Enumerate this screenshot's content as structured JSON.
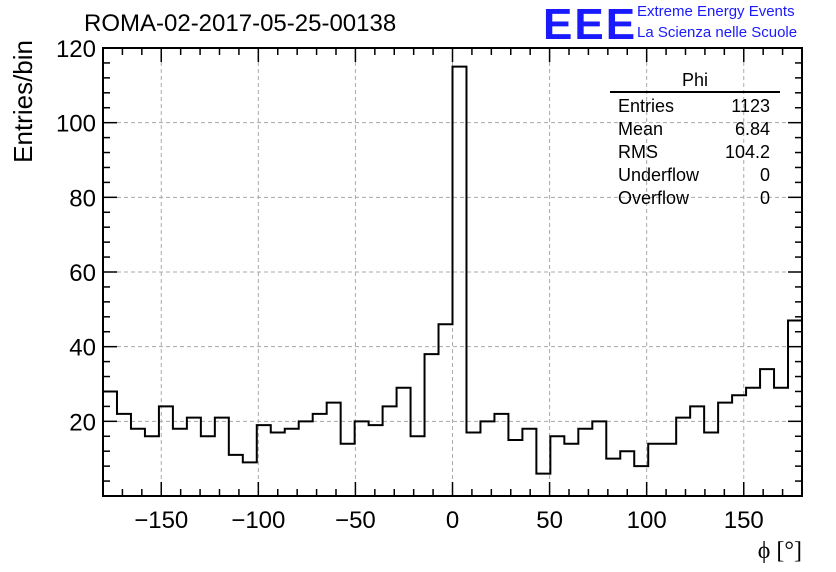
{
  "header": {
    "title": "ROMA-02-2017-05-25-00138",
    "logo": "EEE",
    "logo_line1": "Extreme Energy Events",
    "logo_line2": "La Scienza nelle Scuole",
    "logo_color": "#1a1aff"
  },
  "stats": {
    "title": "Phi",
    "rows": [
      {
        "label": "Entries",
        "value": "1123"
      },
      {
        "label": "Mean",
        "value": "6.84"
      },
      {
        "label": "RMS",
        "value": "104.2"
      },
      {
        "label": "Underflow",
        "value": "0"
      },
      {
        "label": "Overflow",
        "value": "0"
      }
    ]
  },
  "chart_data": {
    "type": "bar",
    "xlabel": "ϕ [°]",
    "ylabel": "Entries/bin",
    "xlim": [
      -180,
      180
    ],
    "ylim": [
      0,
      120
    ],
    "xticks": [
      -150,
      -100,
      -50,
      0,
      50,
      100,
      150
    ],
    "yticks": [
      20,
      40,
      60,
      80,
      100,
      120
    ],
    "grid": true,
    "bin_edges_start": -180,
    "bin_width": 7.2,
    "values": [
      28,
      22,
      18,
      16,
      24,
      18,
      21,
      16,
      21,
      11,
      9,
      19,
      17,
      18,
      20,
      22,
      25,
      14,
      20,
      19,
      24,
      29,
      16,
      38,
      46,
      115,
      17,
      20,
      22,
      15,
      18,
      6,
      16,
      14,
      18,
      20,
      10,
      12,
      8,
      14,
      14,
      21,
      24,
      17,
      25,
      27,
      29,
      34,
      29,
      47
    ]
  }
}
